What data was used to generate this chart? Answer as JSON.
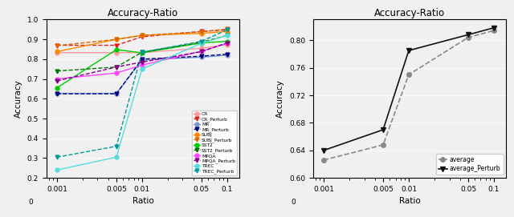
{
  "ratios": [
    0.001,
    0.005,
    0.01,
    0.05,
    0.1
  ],
  "title": "Accuracy-Ratio",
  "xlabel": "Ratio",
  "ylabel": "Accuracy",
  "series": {
    "CR": {
      "color": "#ff9999",
      "marker": "o",
      "linestyle": "-",
      "values": [
        0.833,
        0.833,
        0.833,
        0.855,
        0.873
      ]
    },
    "CR_Perturb": {
      "color": "#dd2222",
      "marker": "v",
      "linestyle": "--",
      "values": [
        0.87,
        0.87,
        0.913,
        0.94,
        0.948
      ]
    },
    "MR": {
      "color": "#7799cc",
      "marker": "o",
      "linestyle": "-",
      "values": [
        0.627,
        0.627,
        0.795,
        0.81,
        0.82
      ]
    },
    "MR_Perturb": {
      "color": "#000080",
      "marker": "v",
      "linestyle": "--",
      "values": [
        0.625,
        0.625,
        0.8,
        0.815,
        0.825
      ]
    },
    "SUBJ": {
      "color": "#ff8800",
      "marker": "o",
      "linestyle": "-",
      "values": [
        0.838,
        0.9,
        0.92,
        0.93,
        0.94
      ]
    },
    "SUBJ_Perturb": {
      "color": "#dd6600",
      "marker": "v",
      "linestyle": "--",
      "values": [
        0.868,
        0.9,
        0.92,
        0.938,
        0.952
      ]
    },
    "SST2": {
      "color": "#00cc00",
      "marker": "o",
      "linestyle": "-",
      "values": [
        0.655,
        0.848,
        0.832,
        0.882,
        0.89
      ]
    },
    "SST2_Perturb": {
      "color": "#007700",
      "marker": "v",
      "linestyle": "--",
      "values": [
        0.74,
        0.76,
        0.835,
        0.885,
        0.92
      ]
    },
    "MPQA": {
      "color": "#ff44ff",
      "marker": "o",
      "linestyle": "-",
      "values": [
        0.7,
        0.73,
        0.77,
        0.84,
        0.88
      ]
    },
    "MPQA_Perturb": {
      "color": "#880088",
      "marker": "v",
      "linestyle": "--",
      "values": [
        0.69,
        0.76,
        0.785,
        0.838,
        0.882
      ]
    },
    "TREC": {
      "color": "#55dddd",
      "marker": "o",
      "linestyle": "-",
      "values": [
        0.24,
        0.305,
        0.75,
        0.88,
        0.92
      ]
    },
    "TREC_Perturb": {
      "color": "#009999",
      "marker": "v",
      "linestyle": "--",
      "values": [
        0.305,
        0.36,
        0.835,
        0.89,
        0.948
      ]
    }
  },
  "left_ylim": [
    0.2,
    1.0
  ],
  "left_yticks": [
    0.2,
    0.3,
    0.4,
    0.5,
    0.6,
    0.7,
    0.8,
    0.9,
    1.0
  ],
  "right_series": {
    "average": {
      "color": "#888888",
      "marker": "o",
      "linestyle": "--",
      "values": [
        0.626,
        0.648,
        0.75,
        0.804,
        0.814
      ]
    },
    "average_Perturb": {
      "color": "#111111",
      "marker": "v",
      "linestyle": "-",
      "values": [
        0.64,
        0.67,
        0.785,
        0.808,
        0.818
      ]
    }
  },
  "right_ylim": [
    0.6,
    0.83
  ],
  "right_yticks": [
    0.6,
    0.64,
    0.68,
    0.72,
    0.76,
    0.8
  ],
  "bg_color": "#f0f0f0"
}
